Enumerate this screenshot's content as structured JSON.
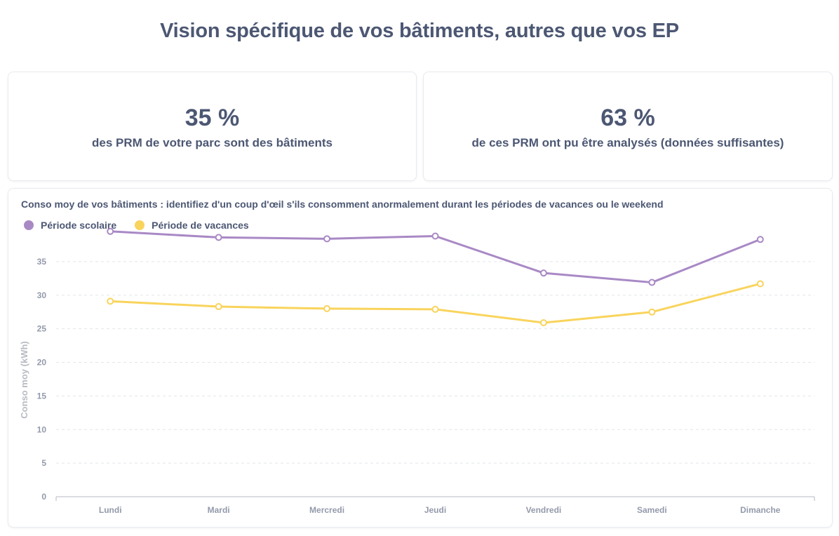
{
  "page": {
    "title": "Vision spécifique de vos bâtiments, autres que vos EP"
  },
  "kpis": [
    {
      "value": "35 %",
      "label": "des PRM de votre parc sont des bâtiments"
    },
    {
      "value": "63 %",
      "label": "de ces PRM ont pu être analysés (données suffisantes)"
    }
  ],
  "colors": {
    "scolaire": "#a989c5",
    "vacances": "#f9d45c",
    "grid": "#e3e5ea",
    "axis": "#949aab"
  },
  "chart_data": {
    "type": "line",
    "title": "Conso moy de vos bâtiments : identifiez d'un coup d'œil s'ils consomment anormalement durant les périodes de vacances ou le weekend",
    "xlabel": "",
    "ylabel": "Conso moy (kWh)",
    "categories": [
      "Lundi",
      "Mardi",
      "Mercredi",
      "Jeudi",
      "Vendredi",
      "Samedi",
      "Dimanche"
    ],
    "series": [
      {
        "name": "Période scolaire",
        "values": [
          39.5,
          38.6,
          38.4,
          38.8,
          33.3,
          31.9,
          38.3
        ]
      },
      {
        "name": "Période de vacances",
        "values": [
          29.1,
          28.3,
          28.0,
          27.9,
          25.9,
          27.5,
          31.7
        ]
      }
    ],
    "yticks": [
      0,
      5,
      10,
      15,
      20,
      25,
      30,
      35
    ],
    "ylim": [
      0,
      40
    ],
    "grid": true,
    "legend": "top-left"
  }
}
